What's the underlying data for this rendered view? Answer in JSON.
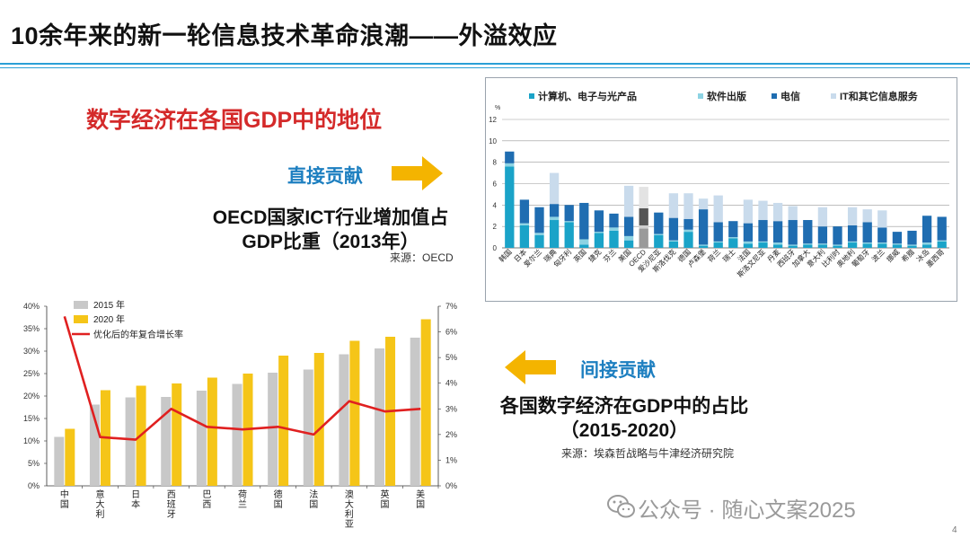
{
  "slide": {
    "title": "10余年来的新一轮信息技术革命浪潮——外溢效应",
    "heading": "数字经济在各国GDP中的地位",
    "direct_label": "直接贡献",
    "chart1_caption_line1": "OECD国家ICT行业增加值占",
    "chart1_caption_line2": "GDP比重（2013年）",
    "chart1_source": "来源：OECD",
    "indirect_label": "间接贡献",
    "chart2_caption_line1": "各国数字经济在GDP中的占比",
    "chart2_caption_line2": "（2015-2020）",
    "chart2_source": "来源：埃森哲战略与牛津经济研究院",
    "watermark": "公众号 · 随心文案2025",
    "page_number": "4",
    "colors": {
      "title_rule": "#2a9fd6",
      "heading_red": "#d42a2a",
      "label_blue": "#1d7fc0",
      "arrow": "#f4b400"
    }
  },
  "chart_data": [
    {
      "type": "bar",
      "title": "OECD国家ICT行业增加值占GDP比重（2013年）",
      "ylabel": "%",
      "ylim": [
        0,
        12
      ],
      "yticks": [
        0,
        2,
        4,
        6,
        8,
        10,
        12
      ],
      "legend": [
        "计算机、电子与光产品",
        "软件出版",
        "电信",
        "IT和其它信息服务"
      ],
      "categories": [
        "韩国",
        "日本",
        "爱尔兰",
        "瑞典",
        "匈牙利",
        "英国",
        "捷克",
        "芬兰",
        "美国",
        "OECD",
        "爱沙尼亚",
        "斯洛伐克",
        "德国",
        "卢森堡",
        "荷兰",
        "瑞士",
        "法国",
        "斯洛文尼亚",
        "丹麦",
        "西班牙",
        "加拿大",
        "意大利",
        "比利时",
        "奥地利",
        "葡萄牙",
        "波兰",
        "挪威",
        "希腊",
        "冰岛",
        "墨西哥"
      ],
      "series": [
        {
          "name": "计算机、电子与光产品",
          "values": [
            7.6,
            2.1,
            1.2,
            2.6,
            2.4,
            0.3,
            1.4,
            1.6,
            0.7,
            1.8,
            1.2,
            0.6,
            1.5,
            0.2,
            0.5,
            0.9,
            0.4,
            0.5,
            0.3,
            0.2,
            0.3,
            0.3,
            0.2,
            0.5,
            0.4,
            0.4,
            0.3,
            0.2,
            0.3,
            0.6
          ]
        },
        {
          "name": "软件出版",
          "values": [
            0.3,
            0.2,
            0.2,
            0.3,
            0.1,
            0.5,
            0.1,
            0.3,
            0.4,
            0.3,
            0.1,
            0.1,
            0.2,
            0.1,
            0.1,
            0.1,
            0.2,
            0.1,
            0.2,
            0.1,
            0.1,
            0.1,
            0.1,
            0.1,
            0.1,
            0.1,
            0.1,
            0.1,
            0.2,
            0.1
          ]
        },
        {
          "name": "电信",
          "values": [
            1.1,
            2.2,
            2.4,
            1.2,
            1.5,
            3.4,
            2.0,
            1.3,
            1.8,
            1.6,
            2.0,
            2.1,
            1.0,
            3.3,
            1.8,
            1.5,
            1.7,
            2.0,
            2.0,
            2.3,
            2.2,
            1.6,
            1.7,
            1.5,
            1.9,
            1.4,
            1.1,
            1.3,
            2.5,
            2.2
          ]
        },
        {
          "name": "IT和其它信息服务",
          "values": [
            0.0,
            0.0,
            0.0,
            2.9,
            0.0,
            0.0,
            0.0,
            0.0,
            2.9,
            2.0,
            0.0,
            2.3,
            2.4,
            1.0,
            2.5,
            0.0,
            2.2,
            1.8,
            1.7,
            1.3,
            0.0,
            1.8,
            0.0,
            1.7,
            1.2,
            1.6,
            0.0,
            0.0,
            0.0,
            0.0
          ]
        }
      ]
    },
    {
      "type": "bar",
      "title": "各国数字经济在GDP中的占比（2015-2020）",
      "categories": [
        "中国",
        "意大利",
        "日本",
        "西班牙",
        "巴西",
        "荷兰",
        "德国",
        "法国",
        "澳大利亚",
        "英国",
        "美国"
      ],
      "category_labels": [
        "中\n国",
        "意\n大\n利",
        "日\n本",
        "西\n班\n牙",
        "巴\n西",
        "荷\n兰",
        "德\n国",
        "法\n国",
        "澳\n大\n利\n亚",
        "英\n国",
        "美\n国"
      ],
      "ylim": [
        0,
        40
      ],
      "yticks": [
        "0%",
        "5%",
        "10%",
        "15%",
        "20%",
        "25%",
        "30%",
        "35%",
        "40%"
      ],
      "y2lim": [
        0,
        7
      ],
      "y2ticks": [
        "0%",
        "1%",
        "2%",
        "3%",
        "4%",
        "5%",
        "6%",
        "7%"
      ],
      "legend": [
        "2015 年",
        "2020 年",
        "优化后的年复合增长率"
      ],
      "series": [
        {
          "name": "2015 年",
          "values": [
            10.9,
            18.1,
            19.7,
            19.8,
            21.2,
            22.7,
            25.2,
            25.9,
            29.3,
            30.6,
            33.0
          ]
        },
        {
          "name": "2020 年",
          "values": [
            12.7,
            21.3,
            22.3,
            22.8,
            24.1,
            25.0,
            29.0,
            29.6,
            32.3,
            33.2,
            37.1
          ]
        },
        {
          "name": "优化后的年复合增长率",
          "axis": "secondary",
          "values": [
            6.6,
            1.9,
            1.8,
            3.0,
            2.3,
            2.2,
            2.3,
            2.0,
            3.3,
            2.9,
            3.0
          ]
        }
      ]
    }
  ]
}
